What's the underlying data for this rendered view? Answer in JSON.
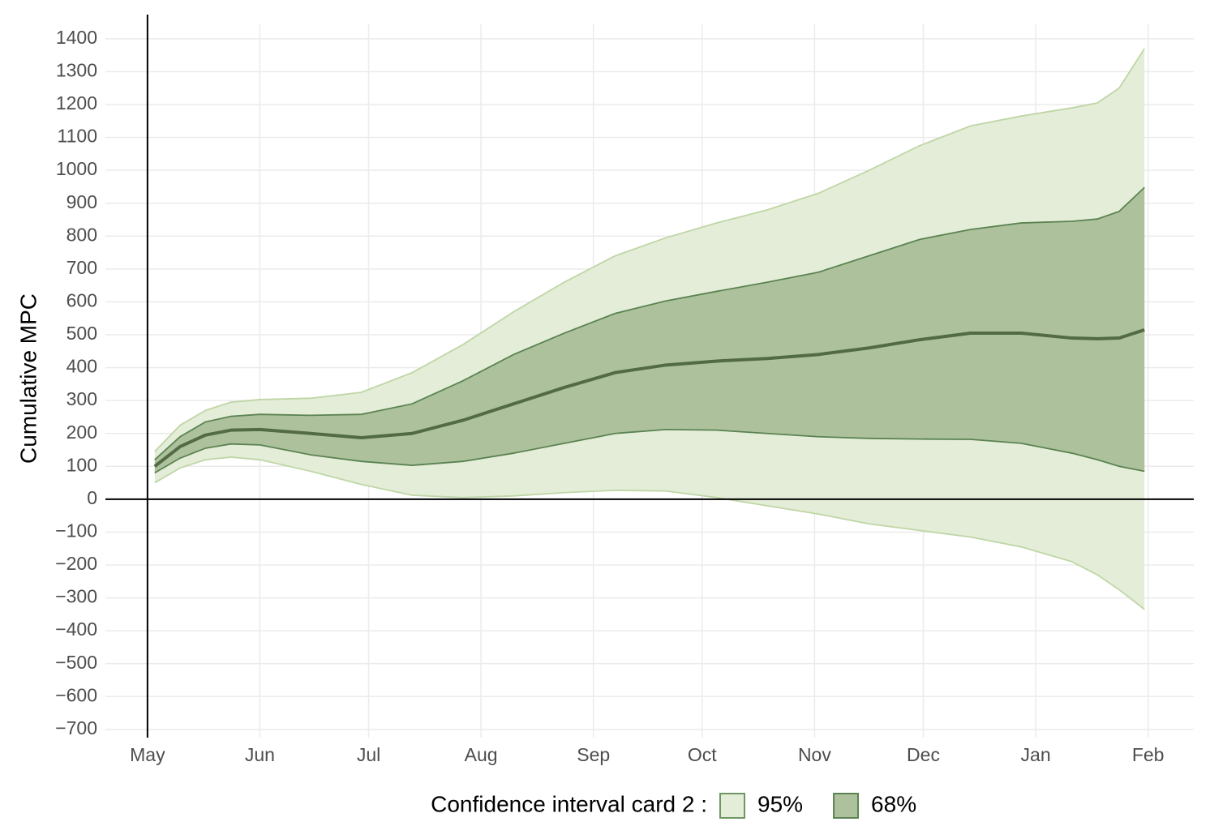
{
  "chart_data": {
    "type": "band-line",
    "y_label": "Cumulative MPC",
    "legend_title": "Confidence interval card 2 :",
    "legend_position": "bottom",
    "grid": true,
    "x": [
      2,
      9,
      16,
      23,
      31,
      45,
      59,
      73,
      87,
      101,
      115,
      129,
      143,
      157,
      171,
      185,
      199,
      213,
      227,
      241,
      255,
      262,
      268,
      275
    ],
    "bands": [
      {
        "name": "95%",
        "color": "#e4edd8",
        "edge": "#bfd6a6",
        "key_edge": "#6e9663",
        "lower": [
          50,
          95,
          120,
          128,
          120,
          85,
          45,
          12,
          5,
          10,
          20,
          27,
          25,
          5,
          -20,
          -45,
          -75,
          -95,
          -115,
          -145,
          -190,
          -230,
          -275,
          -335
        ],
        "upper": [
          145,
          225,
          270,
          295,
          303,
          307,
          325,
          385,
          470,
          570,
          660,
          740,
          795,
          840,
          880,
          930,
          1000,
          1075,
          1135,
          1165,
          1190,
          1205,
          1250,
          1370
        ]
      },
      {
        "name": "68%",
        "color": "#adc29c",
        "edge": "#5b8352",
        "key_edge": "#5b8352",
        "lower": [
          80,
          125,
          155,
          168,
          165,
          135,
          115,
          103,
          115,
          140,
          170,
          200,
          212,
          210,
          200,
          190,
          185,
          183,
          182,
          170,
          140,
          120,
          100,
          85
        ],
        "upper": [
          120,
          190,
          235,
          252,
          258,
          255,
          258,
          290,
          360,
          440,
          505,
          565,
          603,
          632,
          660,
          690,
          740,
          790,
          820,
          840,
          845,
          852,
          875,
          948
        ]
      }
    ],
    "series": [
      {
        "color": "#536b45",
        "values": [
          100,
          160,
          195,
          210,
          212,
          200,
          187,
          200,
          240,
          290,
          340,
          385,
          408,
          420,
          428,
          440,
          460,
          485,
          505,
          505,
          490,
          488,
          490,
          515
        ]
      }
    ],
    "reference_lines": {
      "x": 0,
      "y": 0
    },
    "xlim": [
      -11.6,
      288.6
    ],
    "xticks": [
      {
        "value": 0,
        "label": "May"
      },
      {
        "value": 31,
        "label": "Jun"
      },
      {
        "value": 61,
        "label": "Jul"
      },
      {
        "value": 92,
        "label": "Aug"
      },
      {
        "value": 123,
        "label": "Sep"
      },
      {
        "value": 153,
        "label": "Oct"
      },
      {
        "value": 184,
        "label": "Nov"
      },
      {
        "value": 214,
        "label": "Dec"
      },
      {
        "value": 245,
        "label": "Jan"
      },
      {
        "value": 276,
        "label": "Feb"
      }
    ],
    "ylim": [
      -725,
      1444
    ],
    "yticks": [
      {
        "value": -700,
        "label": "−700"
      },
      {
        "value": -600,
        "label": "−600"
      },
      {
        "value": -500,
        "label": "−500"
      },
      {
        "value": -400,
        "label": "−400"
      },
      {
        "value": -300,
        "label": "−300"
      },
      {
        "value": -200,
        "label": "−200"
      },
      {
        "value": -100,
        "label": "−100"
      },
      0,
      100,
      200,
      300,
      400,
      500,
      600,
      700,
      800,
      900,
      1000,
      1100,
      1200,
      1300,
      1400
    ]
  }
}
